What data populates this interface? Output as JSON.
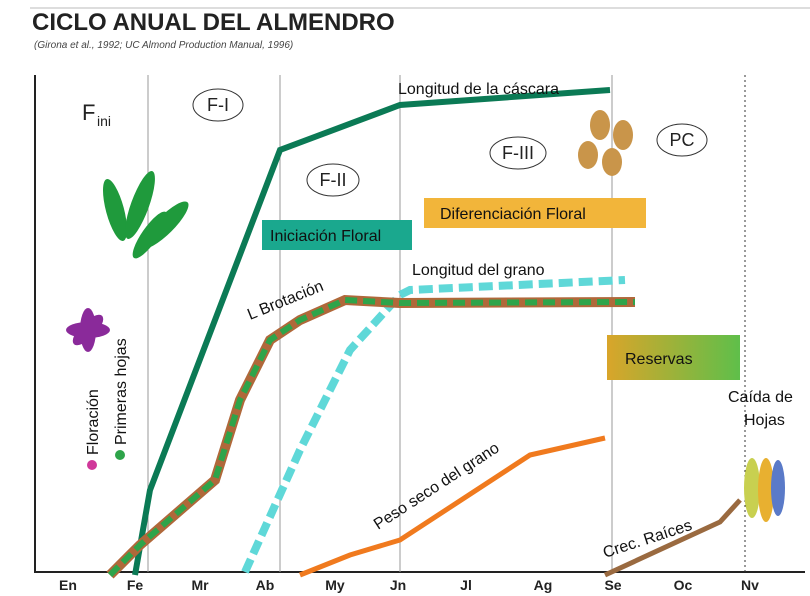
{
  "header": {
    "title": "CICLO ANUAL DEL ALMENDRO",
    "subtitle": "(Girona et al., 1992; UC Almond Production Manual, 1996)"
  },
  "months": [
    "En",
    "Fe",
    "Mr",
    "Ab",
    "My",
    "Jn",
    "Jl",
    "Ag",
    "Se",
    "Oc",
    "Nv"
  ],
  "phases": {
    "fini": "F",
    "fini_sub": "ini",
    "f1": "F-I",
    "f2": "F-II",
    "f3": "F-III",
    "pc": "PC"
  },
  "labels": {
    "cascara": "Longitud de la cáscara",
    "iniciacion": "Iniciación Floral",
    "diferenciacion": "Diferenciación Floral",
    "grano": "Longitud del grano",
    "brotacion": "L Brotación",
    "reservas": "Reservas",
    "peso": "Peso seco del grano",
    "raices": "Crec. Raíces",
    "caida1": "Caída de",
    "caida2": "Hojas"
  },
  "legend": {
    "floracion": "Floración",
    "hojas": "Primeras hojas"
  }
}
